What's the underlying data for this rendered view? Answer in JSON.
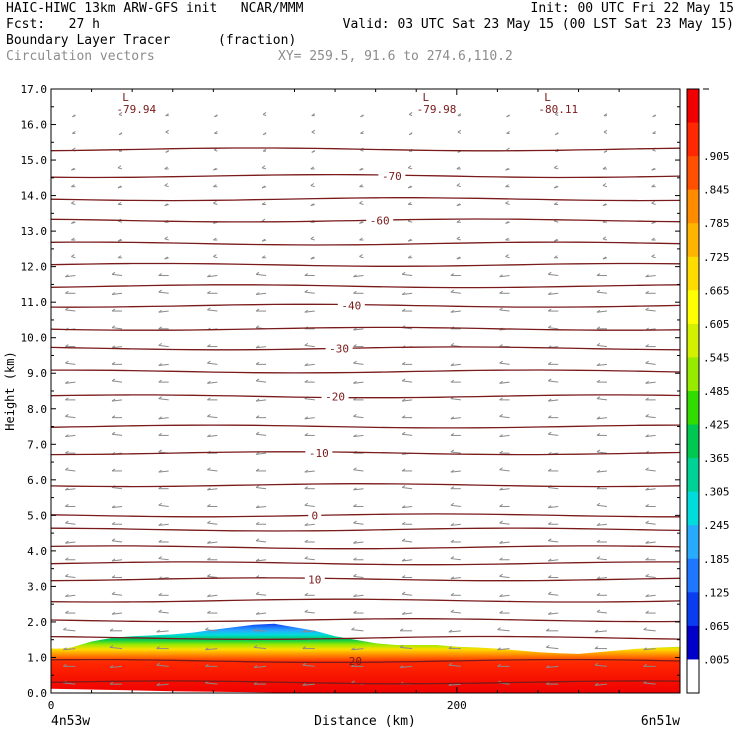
{
  "header": {
    "line1_left": "HAIC-HIWC 13km ARW-GFS init   NCAR/MMM",
    "line1_right": "Init: 00 UTC Fri 22 May 15",
    "line2_left": "Fcst:   27 h",
    "line2_right": "Valid: 03 UTC Sat 23 May 15 (00 LST Sat 23 May 15)",
    "line3_left": "Boundary Layer Tracer",
    "line3_mid": "(fraction)",
    "line4_left": "Circulation vectors",
    "line4_mid": "XY= 259.5, 91.6 to 274.6,110.2"
  },
  "chart_data": {
    "type": "heatmap",
    "field": "Boundary Layer Tracer (fraction)",
    "ylabel": "Height (km)",
    "xlabel": "Distance (km)",
    "x_ticks": [
      "0",
      "200"
    ],
    "x_start_label": "4n53w",
    "x_end_label": "6n51w",
    "xlim": [
      0,
      310
    ],
    "ylim": [
      0.0,
      17.0
    ],
    "y_ticks": [
      "0.0",
      "1.0",
      "2.0",
      "3.0",
      "4.0",
      "5.0",
      "6.0",
      "7.0",
      "8.0",
      "9.0",
      "10.0",
      "11.0",
      "12.0",
      "13.0",
      "14.0",
      "15.0",
      "16.0",
      "17.0"
    ],
    "colorbar_labels": [
      ".005",
      ".065",
      ".125",
      ".185",
      ".245",
      ".305",
      ".365",
      ".425",
      ".485",
      ".545",
      ".605",
      ".665",
      ".725",
      ".785",
      ".845",
      ".905"
    ],
    "colorbar_colors": [
      "#ffffff",
      "#0000c8",
      "#0a3cf0",
      "#1e78ff",
      "#28aaff",
      "#00dcdc",
      "#00d296",
      "#00c850",
      "#32dc00",
      "#96eb00",
      "#d2f000",
      "#ffff00",
      "#ffdc00",
      "#ffb400",
      "#ff8c00",
      "#ff5000",
      "#ff2800",
      "#f00000"
    ],
    "boundary_layer_top_km": {
      "x": [
        0,
        5,
        10,
        20,
        30,
        40,
        50,
        60,
        70,
        80,
        90,
        100,
        110,
        120,
        130,
        140,
        150,
        160,
        170,
        180,
        190,
        200,
        210,
        220,
        230,
        240,
        250,
        260,
        270,
        280,
        290,
        300,
        310
      ],
      "y": [
        1.25,
        1.25,
        1.28,
        1.45,
        1.55,
        1.6,
        1.62,
        1.65,
        1.7,
        1.78,
        1.85,
        1.92,
        1.95,
        1.85,
        1.75,
        1.6,
        1.5,
        1.4,
        1.35,
        1.35,
        1.35,
        1.3,
        1.28,
        1.25,
        1.2,
        1.15,
        1.12,
        1.1,
        1.15,
        1.2,
        1.25,
        1.28,
        1.3
      ]
    },
    "temperature_contours_C": [
      {
        "label": "20",
        "height_km": 0.9
      },
      {
        "label": "10",
        "height_km": 3.2
      },
      {
        "label": "0",
        "height_km": 5.0
      },
      {
        "label": "-10",
        "height_km": 6.75
      },
      {
        "label": "-20",
        "height_km": 8.35
      },
      {
        "label": "-30",
        "height_km": 9.7
      },
      {
        "label": "-40",
        "height_km": 10.9
      },
      {
        "label": "-60",
        "height_km": 13.3
      },
      {
        "label": "-70",
        "height_km": 14.55
      }
    ],
    "temperature_contour_heights_km": [
      0.3,
      0.9,
      1.55,
      2.05,
      2.6,
      3.2,
      3.65,
      4.1,
      4.6,
      5.0,
      5.85,
      6.75,
      7.5,
      8.35,
      9.05,
      9.7,
      10.25,
      10.9,
      11.45,
      12.05,
      12.65,
      13.3,
      13.9,
      14.55,
      15.3
    ],
    "minima_labels": [
      {
        "label": "-79.94",
        "x_km": 42,
        "height_km": 16.55
      },
      {
        "label": "-79.98",
        "x_km": 190,
        "height_km": 16.55
      },
      {
        "label": "-80.11",
        "x_km": 250,
        "height_km": 16.55
      }
    ],
    "minima_marker": "L",
    "vector_columns_km": [
      12,
      35,
      58,
      82,
      106,
      130,
      154,
      178,
      202,
      226,
      250,
      274,
      298
    ],
    "vector_direction": "westward",
    "grid": false
  }
}
